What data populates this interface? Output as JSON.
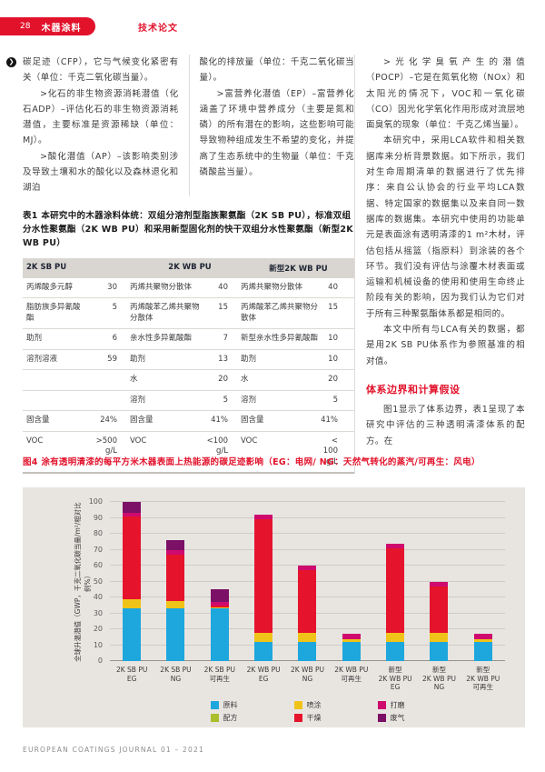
{
  "header": {
    "page_number": "28",
    "section": "木器涂料",
    "doc_type": "技术论文"
  },
  "columns": {
    "col1": {
      "lead": "碳足迹（CFP），它与气候变化紧密有关（单位：千克二氧化碳当量）。",
      "paras": [
        {
          "text": ">化石的非生物资源消耗潜值（化石ADP）–评估化石的非生物资源消耗潜值，主要标准是资源稀缺（单位：MJ）。",
          "indent": true
        },
        {
          "text": ">酸化潜值（AP）–该影响类别涉及导致土壤和水的酸化以及森林退化和湖泊",
          "indent": true
        }
      ]
    },
    "col2": {
      "paras": [
        {
          "text": "酸化的排放量（单位：千克二氧化碳当量）。",
          "indent": false
        },
        {
          "text": ">富营养化潜值（EP）–富营养化涵盖了环境中营养成分（主要是氮和磷）的所有潜在的影响，这些影响可能导致物种组成发生不希望的变化，并提高了生态系统中的生物量（单位：千克磷酸盐当量）。",
          "indent": true
        }
      ]
    },
    "col3": {
      "paras": [
        {
          "text": ">光化学臭氧产生的潜值（POCP）–它是在氮氧化物（NOx）和太阳光的情况下，VOC和一氧化碳（CO）因光化学氧化作用形成对流层地面臭氧的现象（单位：千克乙烯当量）。",
          "indent": true
        },
        {
          "text": "本研究中，采用LCA软件和相关数据库来分析背景数据。如下所示，我们对生命周期清单的数据进行了优先排序：来自公认协会的行业平均LCA数据、特定国家的数据集以及来自同一数据库的数据集。本研究中使用的功能单元是表面涂有透明清漆的1 m²木材，评估包括从摇篮（指原料）到涂装的各个环节。我们没有评估与涂覆木材表面或运输和机械设备的使用和使用生命终止阶段有关的影响，因为我们认为它们对于所有三种聚氨酯体系都是相同的。",
          "indent": true
        },
        {
          "text": "本文中所有与LCA有关的数据，都是用2K SB PU体系作为参照基准的相对值。",
          "indent": true
        }
      ],
      "heading": "体系边界和计算假设",
      "paras_after": [
        {
          "text": "图1显示了体系边界，表1呈现了本研究中评估的三种透明清漆体系的配方。在",
          "indent": true
        }
      ]
    }
  },
  "table": {
    "title": "表1 本研究中的木器涂料体统：双组分溶剂型脂族聚氨酯（2K SB PU），标准双组分水性聚氨酯（2K WB PU）和采用新型固化剂的快干双组分水性聚氨酯（新型2K WB PU）",
    "headers": [
      "2K SB PU",
      "2K WB PU",
      "新型2K WB PU"
    ],
    "rows": [
      [
        "丙烯酸多元醇",
        "30",
        "丙烯共聚物分散体",
        "40",
        "丙烯共聚物分散体",
        "40"
      ],
      [
        "脂肪族多异氰酸酯",
        "5",
        "丙烯酸苯乙烯共聚物分散体",
        "15",
        "丙烯酸苯乙烯共聚物分散体",
        "15"
      ],
      [
        "助剂",
        "6",
        "亲水性多异氰酸酯",
        "7",
        "新型亲水性多异氰酸酯",
        "10"
      ],
      [
        "溶剂溶液",
        "59",
        "助剂",
        "13",
        "助剂",
        "10"
      ],
      [
        "",
        "",
        "水",
        "20",
        "水",
        "20"
      ],
      [
        "",
        "",
        "溶剂",
        "5",
        "溶剂",
        "5"
      ],
      [
        "固含量",
        "24%",
        "固含量",
        "41%",
        "固含量",
        "41%"
      ],
      [
        "VOC",
        ">500 g/L",
        "VOC",
        "<100 g/L",
        "VOC",
        "< 100 g/L"
      ]
    ]
  },
  "figure": {
    "caption": "图4 涂有透明清漆的每平方米木器表面上热能源的碳足迹影响（EG：电网/ NG：天然气转化的蒸汽/可再生：风电）"
  },
  "chart_data": {
    "type": "bar",
    "stacked": true,
    "ylabel": "全球升温潜值（GWP，千克二氧化碳当量/m²/相对比例%）",
    "ylim": [
      0,
      100
    ],
    "ytick_step": 10,
    "grid": true,
    "legend_position": "bottom",
    "categories": [
      [
        "2K SB PU",
        "EG"
      ],
      [
        "2K SB PU",
        "NG"
      ],
      [
        "2K SB PU",
        "可再生"
      ],
      [
        "2K WB PU",
        "EG"
      ],
      [
        "2K WB PU",
        "NG"
      ],
      [
        "2K WB PU",
        "可再生"
      ],
      [
        "新型",
        "2K WB PU",
        "EG"
      ],
      [
        "新型",
        "2K WB PU",
        "NG"
      ],
      [
        "新型",
        "2K WB PU",
        "可再生"
      ]
    ],
    "series": [
      {
        "name": "原料",
        "color": "#1ea7dd",
        "values": [
          33,
          33,
          33,
          12,
          12,
          12,
          12,
          12,
          12
        ]
      },
      {
        "name": "配方",
        "color": "#a9bf2c",
        "values": [
          0,
          0,
          0,
          0,
          0,
          0,
          0,
          0,
          0
        ]
      },
      {
        "name": "喷涂",
        "color": "#f0c319",
        "values": [
          6,
          5,
          1,
          6,
          6,
          2,
          6,
          6,
          2
        ]
      },
      {
        "name": "干燥",
        "color": "#e6132c",
        "values": [
          52,
          29,
          1,
          71,
          39,
          0,
          53,
          29,
          0
        ]
      },
      {
        "name": "打磨",
        "color": "#ce0a6e",
        "values": [
          2,
          3,
          2,
          3,
          3,
          3,
          3,
          3,
          3
        ]
      },
      {
        "name": "废气",
        "color": "#7c0f66",
        "values": [
          7,
          6,
          8,
          0,
          0,
          0,
          0,
          0,
          0
        ]
      }
    ],
    "legend": [
      {
        "label": "原料",
        "color": "#1ea7dd"
      },
      {
        "label": "喷涂",
        "color": "#f0c319"
      },
      {
        "label": "打磨",
        "color": "#ce0a6e"
      },
      {
        "label": "配方",
        "color": "#a9bf2c"
      },
      {
        "label": "干燥",
        "color": "#e6132c"
      },
      {
        "label": "废气",
        "color": "#7c0f66"
      }
    ]
  },
  "footer": {
    "text": "EUROPEAN COATINGS JOURNAL 01 – 2021"
  }
}
